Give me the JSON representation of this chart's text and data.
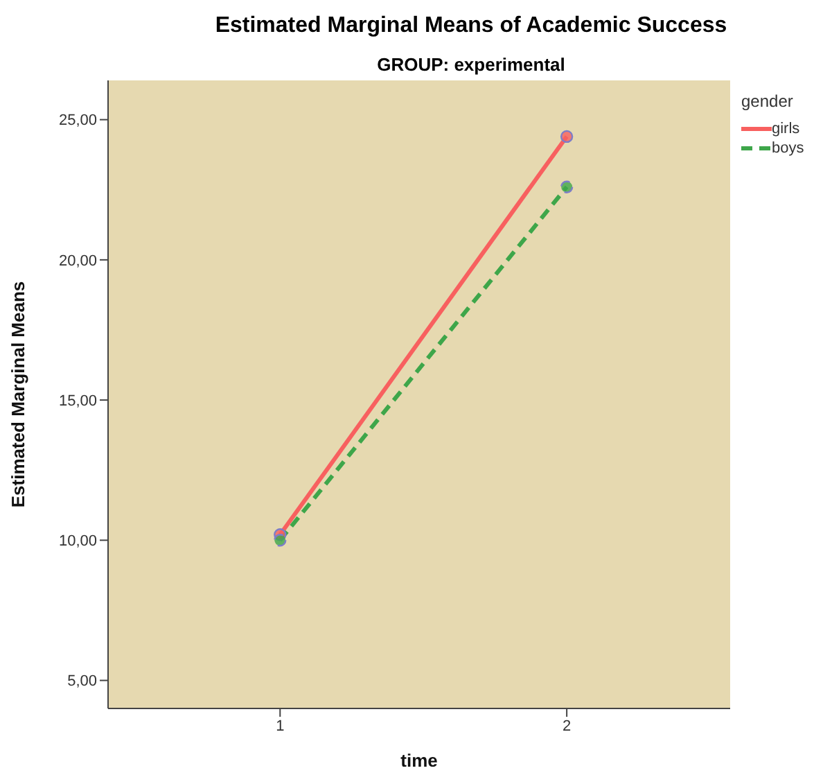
{
  "chart_data": {
    "type": "line",
    "title": "Estimated Marginal Means of Academic Success",
    "subtitle": "GROUP: experimental",
    "xlabel": "time",
    "ylabel": "Estimated Marginal Means",
    "legend_title": "gender",
    "x": [
      1,
      2
    ],
    "xlim": [
      0.4,
      2.57
    ],
    "xticks": [
      1,
      2
    ],
    "ylim": [
      4,
      26.4
    ],
    "yticks": [
      {
        "value": 5,
        "label": "5,00"
      },
      {
        "value": 10,
        "label": "10,00"
      },
      {
        "value": 15,
        "label": "15,00"
      },
      {
        "value": 20,
        "label": "20,00"
      },
      {
        "value": 25,
        "label": "25,00"
      }
    ],
    "series": [
      {
        "name": "girls",
        "color": "#f8605f",
        "values": [
          10.2,
          24.4
        ],
        "line_style": "solid"
      },
      {
        "name": "boys",
        "color": "#3ea64a",
        "values": [
          10.0,
          22.6
        ],
        "line_style": "dashed"
      }
    ],
    "marker": "circle",
    "grid": false,
    "legend": "right"
  }
}
